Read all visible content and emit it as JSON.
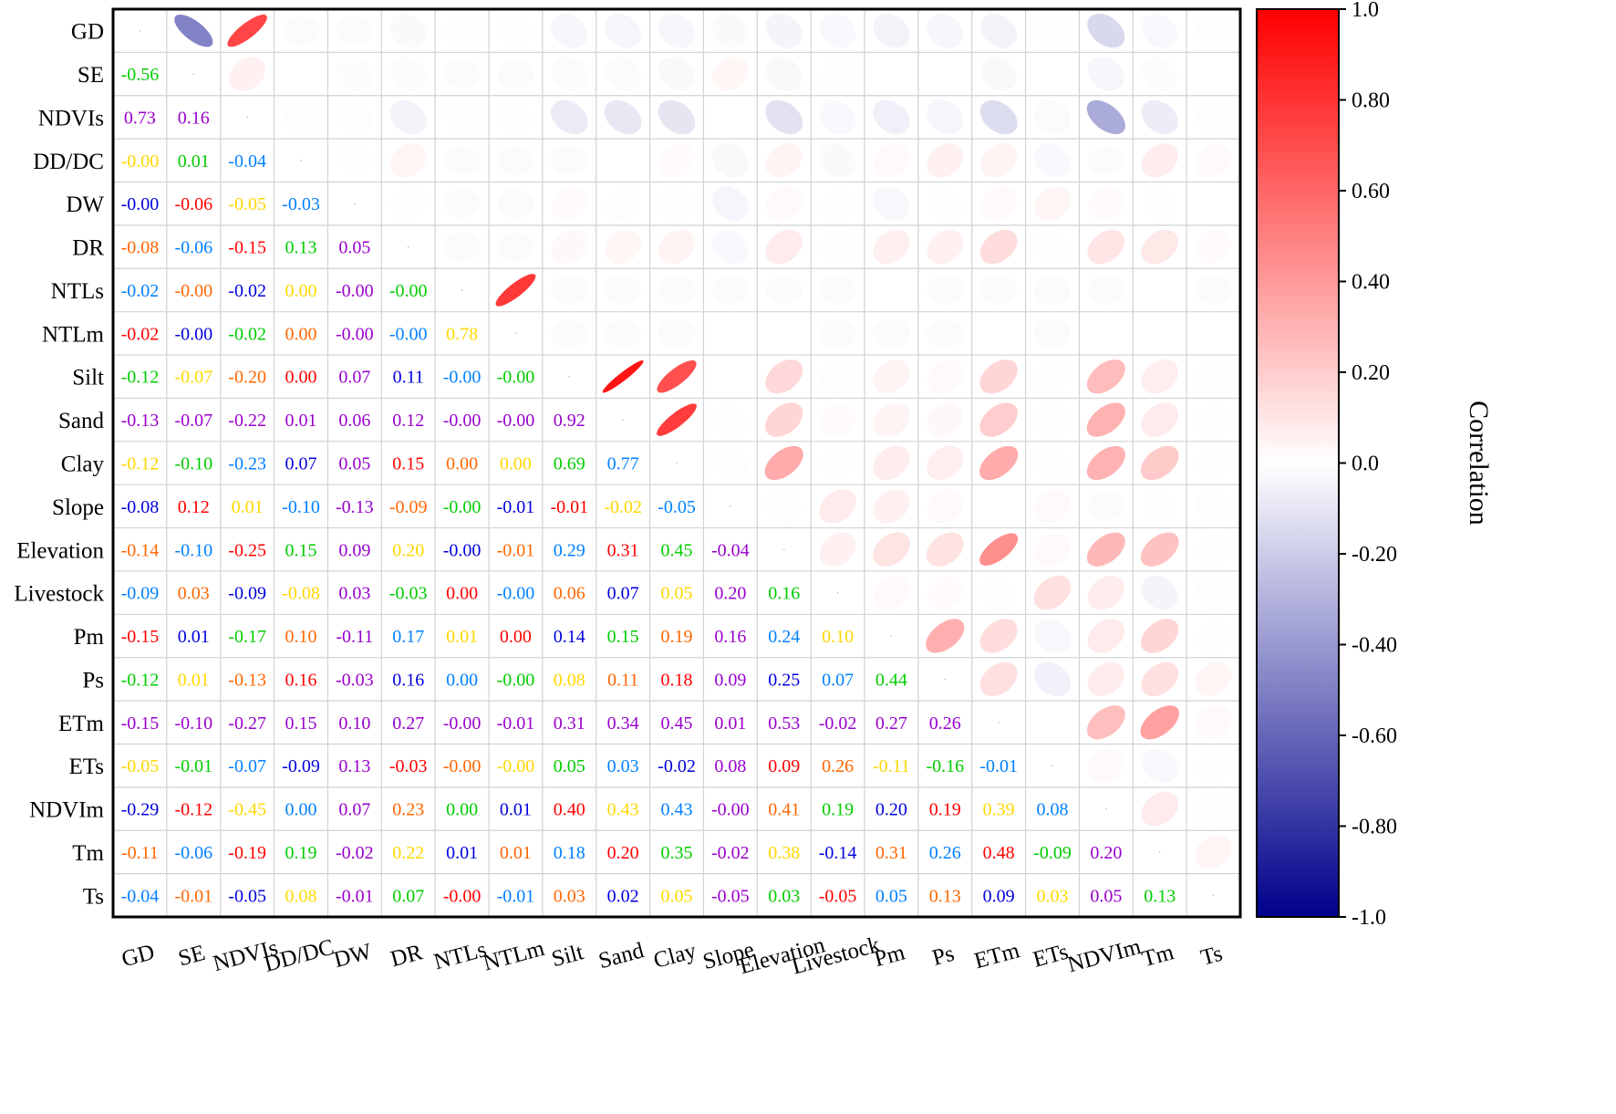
{
  "chart_data": {
    "type": "heatmap",
    "variant": "correlation-matrix",
    "variables": [
      "GD",
      "SE",
      "NDVIs",
      "DD/DC",
      "DW",
      "DR",
      "NTLs",
      "NTLm",
      "Silt",
      "Sand",
      "Clay",
      "Slope",
      "Elevation",
      "Livestock",
      "Pm",
      "Ps",
      "ETm",
      "ETs",
      "NDVIm",
      "Tm",
      "Ts"
    ],
    "lower_values": [
      [],
      [
        -0.56
      ],
      [
        0.73,
        0.16
      ],
      [
        -0.0,
        0.01,
        -0.04
      ],
      [
        -0.0,
        -0.06,
        -0.05,
        -0.03
      ],
      [
        -0.08,
        -0.06,
        -0.15,
        0.13,
        0.05
      ],
      [
        -0.02,
        -0.0,
        -0.02,
        0.0,
        -0.0,
        -0.0
      ],
      [
        -0.02,
        -0.0,
        -0.02,
        0.0,
        -0.0,
        -0.0,
        0.78
      ],
      [
        -0.12,
        -0.07,
        -0.2,
        0.0,
        0.07,
        0.11,
        -0.0,
        -0.0
      ],
      [
        -0.13,
        -0.07,
        -0.22,
        0.01,
        0.06,
        0.12,
        -0.0,
        -0.0,
        0.92
      ],
      [
        -0.12,
        -0.1,
        -0.23,
        0.07,
        0.05,
        0.15,
        0.0,
        0.0,
        0.69,
        0.77
      ],
      [
        -0.08,
        0.12,
        0.01,
        -0.1,
        -0.13,
        -0.09,
        -0.0,
        -0.01,
        -0.01,
        -0.02,
        -0.05
      ],
      [
        -0.14,
        -0.1,
        -0.25,
        0.15,
        0.09,
        0.2,
        -0.0,
        -0.01,
        0.29,
        0.31,
        0.45,
        -0.04
      ],
      [
        -0.09,
        0.03,
        -0.09,
        -0.08,
        0.03,
        -0.03,
        0.0,
        -0.0,
        0.06,
        0.07,
        0.05,
        0.2,
        0.16
      ],
      [
        -0.15,
        0.01,
        -0.17,
        0.1,
        -0.11,
        0.17,
        0.01,
        0.0,
        0.14,
        0.15,
        0.19,
        0.16,
        0.24,
        0.1
      ],
      [
        -0.12,
        0.01,
        -0.13,
        0.16,
        -0.03,
        0.16,
        0.0,
        -0.0,
        0.08,
        0.11,
        0.18,
        0.09,
        0.25,
        0.07,
        0.44
      ],
      [
        -0.15,
        -0.1,
        -0.27,
        0.15,
        0.1,
        0.27,
        -0.0,
        -0.01,
        0.31,
        0.34,
        0.45,
        0.01,
        0.53,
        -0.02,
        0.27,
        0.26
      ],
      [
        -0.05,
        -0.01,
        -0.07,
        -0.09,
        0.13,
        -0.03,
        -0.0,
        -0.0,
        0.05,
        0.03,
        -0.02,
        0.08,
        0.09,
        0.26,
        -0.11,
        -0.16,
        -0.01
      ],
      [
        -0.29,
        -0.12,
        -0.45,
        0.0,
        0.07,
        0.23,
        0.0,
        0.01,
        0.4,
        0.43,
        0.43,
        -0.0,
        0.41,
        0.19,
        0.2,
        0.19,
        0.39,
        0.08
      ],
      [
        -0.11,
        -0.06,
        -0.19,
        0.19,
        -0.02,
        0.22,
        0.01,
        0.01,
        0.18,
        0.2,
        0.35,
        -0.02,
        0.38,
        -0.14,
        0.31,
        0.26,
        0.48,
        -0.09,
        0.2
      ],
      [
        -0.04,
        -0.01,
        -0.05,
        0.08,
        -0.01,
        0.07,
        -0.0,
        -0.01,
        0.03,
        0.02,
        0.05,
        -0.05,
        0.03,
        -0.05,
        0.05,
        0.13,
        0.09,
        0.03,
        0.05,
        0.13
      ]
    ],
    "label_palette": [
      "#ff0000",
      "#ff6600",
      "#ffd700",
      "#00cc00",
      "#0080ff",
      "#0000dd",
      "#9900cc"
    ],
    "colorbar": {
      "title": "Correlation",
      "range": [
        -1.0,
        1.0
      ],
      "tick_values": [
        1.0,
        0.8,
        0.6,
        0.4,
        0.2,
        0.0,
        -0.2,
        -0.4,
        -0.6,
        -0.8,
        -1.0
      ],
      "tick_labels": [
        "1.0",
        "0.80",
        "0.60",
        "0.40",
        "0.20",
        "0.0",
        "-0.20",
        "-0.40",
        "-0.60",
        "-0.80",
        "-1.0"
      ],
      "colors": {
        "negative": "#00008b",
        "zero": "#ffffff",
        "positive": "#ff0000"
      }
    }
  }
}
